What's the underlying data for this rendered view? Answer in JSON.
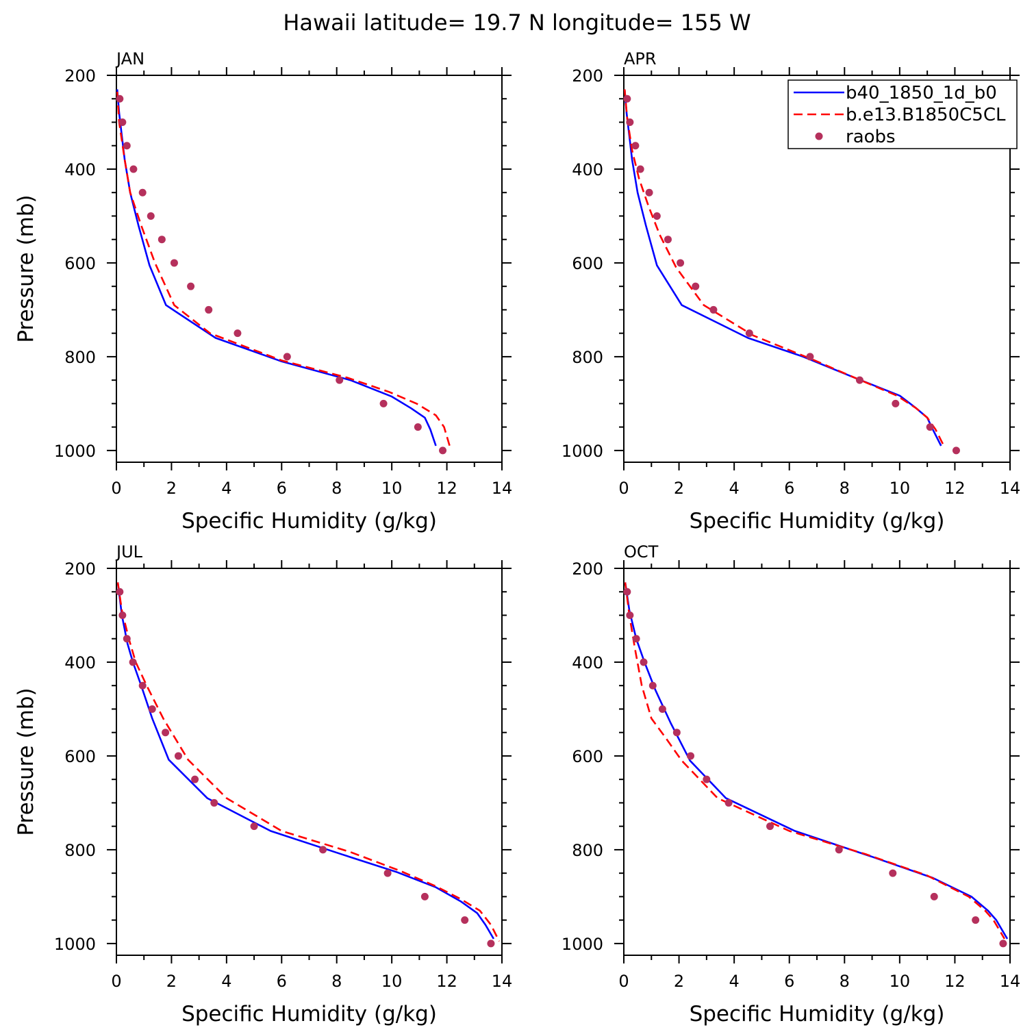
{
  "figure_title": "Hawaii  latitude= 19.7 N longitude= 155 W",
  "colors": {
    "b40": "#0000ff",
    "be13": "#ff0000",
    "raobs": "#b5305c",
    "axis": "#000000"
  },
  "legend": {
    "entries": [
      {
        "name": "b40_1850_1d_b0",
        "display": "b40_1850_1d_b0",
        "style": "solid",
        "color": "#0000ff"
      },
      {
        "name": "b.e13.B1850C5CL",
        "display": "b.e13.B1850C5CL",
        "style": "dashed",
        "color": "#ff0000"
      },
      {
        "name": "raobs",
        "display": "raobs",
        "style": "dots",
        "color": "#b5305c"
      }
    ],
    "placement": "top-right of APR panel"
  },
  "chart_data": [
    {
      "type": "line",
      "panel": "JAN",
      "xlabel": "Specific Humidity (g/kg)",
      "ylabel": "Pressure (mb)",
      "xlim": [
        0,
        14
      ],
      "ylim": [
        1025,
        200
      ],
      "xticks": [
        0,
        2,
        4,
        6,
        8,
        10,
        12,
        14
      ],
      "yticks": [
        200,
        400,
        600,
        800,
        1000
      ],
      "series": [
        {
          "name": "b40_1850_1d_b0",
          "x": [
            0.03,
            0.1,
            0.2,
            0.3,
            0.5,
            0.8,
            1.2,
            1.8,
            3.6,
            6.0,
            8.5,
            10.0,
            10.7,
            11.2,
            11.4,
            11.6
          ],
          "y": [
            230,
            280,
            330,
            380,
            450,
            520,
            605,
            690,
            760,
            810,
            850,
            885,
            910,
            930,
            955,
            990
          ]
        },
        {
          "name": "b.e13.B1850C5CL",
          "x": [
            0.03,
            0.1,
            0.3,
            0.5,
            0.9,
            1.4,
            2.1,
            3.4,
            6.0,
            8.4,
            9.9,
            10.9,
            11.6,
            11.9,
            12.1
          ],
          "y": [
            235,
            300,
            380,
            450,
            520,
            600,
            690,
            750,
            808,
            845,
            875,
            900,
            925,
            950,
            990
          ]
        },
        {
          "name": "raobs",
          "x": [
            0.12,
            0.22,
            0.38,
            0.62,
            0.95,
            1.25,
            1.65,
            2.1,
            2.7,
            3.35,
            4.4,
            6.2,
            8.1,
            9.7,
            10.95,
            11.85
          ],
          "y": [
            250,
            300,
            350,
            400,
            450,
            500,
            550,
            600,
            650,
            700,
            750,
            800,
            850,
            900,
            950,
            1000
          ]
        }
      ]
    },
    {
      "type": "line",
      "panel": "APR",
      "xlabel": "Specific Humidity (g/kg)",
      "ylabel": "",
      "xlim": [
        0,
        14
      ],
      "ylim": [
        1025,
        200
      ],
      "xticks": [
        0,
        2,
        4,
        6,
        8,
        10,
        12,
        14
      ],
      "yticks": [
        200,
        400,
        600,
        800,
        1000
      ],
      "series": [
        {
          "name": "b40_1850_1d_b0",
          "x": [
            0.03,
            0.1,
            0.2,
            0.3,
            0.5,
            0.8,
            1.2,
            2.1,
            4.5,
            6.5,
            8.5,
            10.0,
            10.6,
            11.0,
            11.2,
            11.5
          ],
          "y": [
            230,
            280,
            330,
            380,
            450,
            520,
            605,
            690,
            760,
            800,
            848,
            883,
            910,
            930,
            955,
            990
          ]
        },
        {
          "name": "b.e13.B1850C5CL",
          "x": [
            0.03,
            0.12,
            0.3,
            0.55,
            0.9,
            1.3,
            1.9,
            2.9,
            4.7,
            6.8,
            8.5,
            9.9,
            10.6,
            11.0,
            11.3,
            11.6
          ],
          "y": [
            230,
            290,
            360,
            420,
            480,
            540,
            610,
            690,
            755,
            805,
            848,
            883,
            910,
            930,
            955,
            990
          ]
        },
        {
          "name": "raobs",
          "x": [
            0.12,
            0.22,
            0.42,
            0.6,
            0.92,
            1.2,
            1.6,
            2.05,
            2.6,
            3.25,
            4.55,
            6.75,
            8.55,
            9.85,
            11.1,
            12.05
          ],
          "y": [
            250,
            300,
            350,
            400,
            450,
            500,
            550,
            600,
            650,
            700,
            750,
            800,
            850,
            900,
            950,
            1000
          ]
        }
      ]
    },
    {
      "type": "line",
      "panel": "JUL",
      "xlabel": "Specific Humidity (g/kg)",
      "ylabel": "Pressure (mb)",
      "xlim": [
        0,
        14
      ],
      "ylim": [
        1025,
        200
      ],
      "xticks": [
        0,
        2,
        4,
        6,
        8,
        10,
        12,
        14
      ],
      "yticks": [
        200,
        400,
        600,
        800,
        1000
      ],
      "series": [
        {
          "name": "b40_1850_1d_b0",
          "x": [
            0.05,
            0.2,
            0.4,
            0.6,
            0.9,
            1.3,
            1.9,
            3.3,
            5.6,
            8.2,
            10.2,
            11.6,
            12.5,
            13.1,
            13.4,
            13.7
          ],
          "y": [
            230,
            300,
            360,
            400,
            450,
            520,
            608,
            690,
            760,
            810,
            848,
            880,
            910,
            935,
            960,
            990
          ]
        },
        {
          "name": "b.e13.B1850C5CL",
          "x": [
            0.05,
            0.2,
            0.45,
            0.7,
            1.1,
            1.7,
            2.6,
            4.0,
            6.0,
            8.5,
            10.3,
            11.6,
            12.5,
            13.2,
            13.6,
            13.9
          ],
          "y": [
            230,
            290,
            350,
            400,
            450,
            520,
            608,
            690,
            760,
            805,
            845,
            878,
            905,
            930,
            960,
            995
          ]
        },
        {
          "name": "raobs",
          "x": [
            0.12,
            0.22,
            0.38,
            0.6,
            0.95,
            1.3,
            1.78,
            2.25,
            2.85,
            3.55,
            5.0,
            7.5,
            9.85,
            11.2,
            12.65,
            13.6
          ],
          "y": [
            250,
            300,
            350,
            400,
            450,
            500,
            550,
            600,
            650,
            700,
            750,
            800,
            850,
            900,
            950,
            1000
          ]
        }
      ]
    },
    {
      "type": "line",
      "panel": "OCT",
      "xlabel": "Specific Humidity (g/kg)",
      "ylabel": "",
      "xlim": [
        0,
        14
      ],
      "ylim": [
        1025,
        200
      ],
      "xticks": [
        0,
        2,
        4,
        6,
        8,
        10,
        12,
        14
      ],
      "yticks": [
        200,
        400,
        600,
        800,
        1000
      ],
      "series": [
        {
          "name": "b40_1850_1d_b0",
          "x": [
            0.05,
            0.2,
            0.45,
            0.75,
            1.15,
            1.7,
            2.4,
            3.7,
            6.2,
            9.0,
            11.2,
            12.6,
            13.2,
            13.5,
            13.7,
            13.9
          ],
          "y": [
            230,
            290,
            350,
            400,
            460,
            530,
            610,
            690,
            760,
            815,
            860,
            900,
            930,
            950,
            970,
            990
          ]
        },
        {
          "name": "b.e13.B1850C5CL",
          "x": [
            0.05,
            0.2,
            0.4,
            0.65,
            1.0,
            1.5,
            2.1,
            3.4,
            6.0,
            8.8,
            11.0,
            12.5,
            13.1,
            13.4,
            13.6,
            13.8
          ],
          "y": [
            230,
            300,
            370,
            450,
            520,
            560,
            610,
            690,
            760,
            810,
            855,
            900,
            930,
            950,
            970,
            990
          ]
        },
        {
          "name": "raobs",
          "x": [
            0.12,
            0.22,
            0.45,
            0.72,
            1.05,
            1.4,
            1.92,
            2.42,
            3.0,
            3.8,
            5.3,
            7.8,
            9.75,
            11.25,
            12.75,
            13.75
          ],
          "y": [
            250,
            300,
            350,
            400,
            450,
            500,
            550,
            600,
            650,
            700,
            750,
            800,
            850,
            900,
            950,
            1000
          ]
        }
      ]
    }
  ]
}
